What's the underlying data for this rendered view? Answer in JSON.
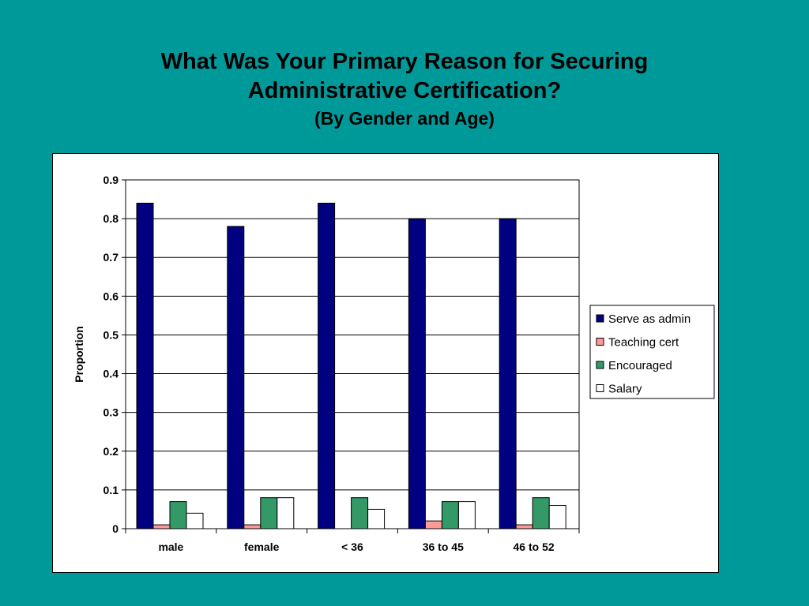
{
  "slide": {
    "title_line1": "What Was Your Primary Reason for Securing",
    "title_line2": "Administrative Certification?",
    "subtitle": "(By Gender and Age)",
    "background_color": "#009999"
  },
  "chart_data": {
    "type": "bar",
    "title": "",
    "xlabel": "",
    "ylabel": "Proportion",
    "ylim": [
      0,
      0.9
    ],
    "yticks": [
      "0",
      "0.1",
      "0.2",
      "0.3",
      "0.4",
      "0.5",
      "0.6",
      "0.7",
      "0.8",
      "0.9"
    ],
    "categories": [
      "male",
      "female",
      "< 36",
      "36 to 45",
      "46 to 52"
    ],
    "series": [
      {
        "name": "Serve as admin",
        "color": "#000080",
        "values": [
          0.84,
          0.78,
          0.84,
          0.8,
          0.8
        ]
      },
      {
        "name": "Teaching cert",
        "color": "#FF9999",
        "values": [
          0.01,
          0.01,
          0.0,
          0.02,
          0.01
        ]
      },
      {
        "name": "Encouraged",
        "color": "#339966",
        "values": [
          0.07,
          0.08,
          0.08,
          0.07,
          0.08
        ]
      },
      {
        "name": "Salary",
        "color": "#FFFFFF",
        "values": [
          0.04,
          0.08,
          0.05,
          0.07,
          0.06
        ]
      }
    ],
    "grid": true,
    "legend_position": "right"
  }
}
